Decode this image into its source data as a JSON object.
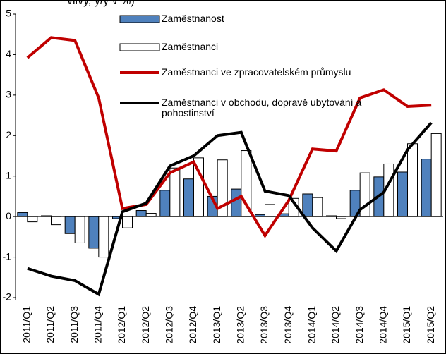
{
  "chart_data": {
    "type": "bar-line",
    "title": "vlivy, y/y v %)",
    "categories": [
      "2011/Q1",
      "2011/Q2",
      "2011/Q3",
      "2011/Q4",
      "2012/Q1",
      "2012/Q2",
      "2012/Q3",
      "2012/Q4",
      "2013/Q1",
      "2013/Q2",
      "2013/Q3",
      "2013/Q4",
      "2014/Q1",
      "2014/Q2",
      "2014/Q3",
      "2014/Q4",
      "2015/Q1",
      "2015/Q2"
    ],
    "series": [
      {
        "name": "Zaměstnanost",
        "type": "bar",
        "color": "#4f81bd",
        "values": [
          0.1,
          0.02,
          -0.42,
          -0.78,
          -0.05,
          0.15,
          0.65,
          0.93,
          0.5,
          0.68,
          0.05,
          0.07,
          0.56,
          0.02,
          0.65,
          0.98,
          1.1,
          1.42
        ]
      },
      {
        "name": "Zaměstnanci",
        "type": "bar",
        "color": "#ffffff",
        "values": [
          -0.13,
          -0.2,
          -0.65,
          -1.0,
          -0.28,
          0.08,
          1.2,
          1.45,
          1.4,
          1.63,
          0.3,
          0.45,
          0.47,
          -0.05,
          1.08,
          1.3,
          1.8,
          2.05
        ]
      },
      {
        "name": "Zaměstnanci ve zpracovatelském průmyslu",
        "type": "line",
        "color": "#c00000",
        "values": [
          3.92,
          4.42,
          4.35,
          2.93,
          0.2,
          0.3,
          1.08,
          1.35,
          0.2,
          0.5,
          -0.47,
          0.4,
          1.67,
          1.62,
          2.93,
          3.13,
          2.72,
          2.75
        ]
      },
      {
        "name": "Zaměstnanci v obchodu, dopravě ubytování a pohostinství",
        "type": "line",
        "color": "#000000",
        "values": [
          -1.28,
          -1.47,
          -1.58,
          -1.92,
          0.12,
          0.33,
          1.25,
          1.5,
          2.0,
          2.08,
          0.63,
          0.52,
          -0.28,
          -0.85,
          0.17,
          0.6,
          1.65,
          2.32
        ]
      }
    ],
    "ylim": [
      -2,
      5
    ],
    "yticks": [
      -2,
      -1,
      0,
      1,
      2,
      3,
      4,
      5
    ]
  }
}
